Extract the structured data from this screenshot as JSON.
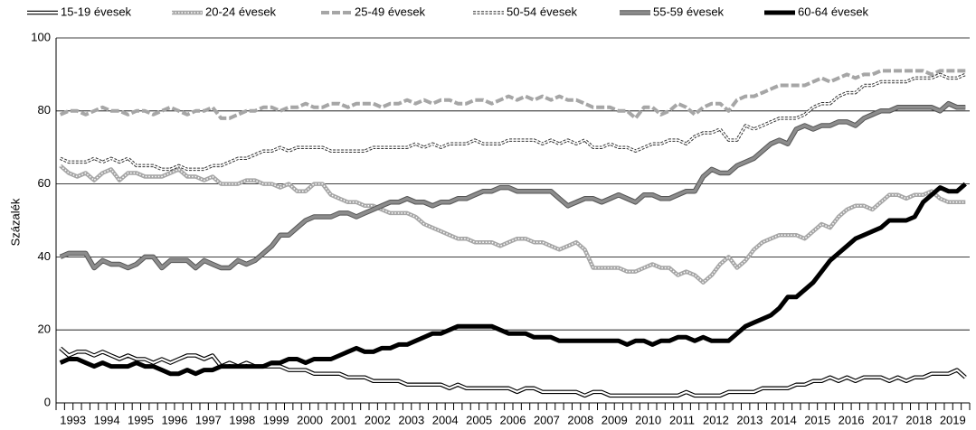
{
  "chart_data": {
    "type": "line",
    "ylabel": "Százalék",
    "categories": [
      "1993",
      null,
      null,
      null,
      "1994",
      null,
      null,
      null,
      "1995",
      null,
      null,
      null,
      "1996",
      null,
      null,
      null,
      "1997",
      null,
      null,
      null,
      "1998",
      null,
      null,
      null,
      "1999",
      null,
      null,
      null,
      "2000",
      null,
      null,
      null,
      "2001",
      null,
      null,
      null,
      "2002",
      null,
      null,
      null,
      "2003",
      null,
      null,
      null,
      "2004",
      null,
      null,
      null,
      "2005",
      null,
      null,
      null,
      "2006",
      null,
      null,
      null,
      "2007",
      null,
      null,
      null,
      "2008",
      null,
      null,
      null,
      "2009",
      null,
      null,
      null,
      "2010",
      null,
      null,
      null,
      "2011",
      null,
      null,
      null,
      "2012",
      null,
      null,
      null,
      "2013",
      null,
      null,
      null,
      "2014",
      null,
      null,
      null,
      "2015",
      null,
      null,
      null,
      "2016",
      null,
      null,
      null,
      "2017",
      null,
      null,
      null,
      "2018",
      null,
      null,
      null,
      "2019",
      null,
      null,
      null
    ],
    "ylim": [
      0,
      100
    ],
    "yticks": [
      0,
      20,
      40,
      60,
      80,
      100
    ],
    "grid": true,
    "legend": "top",
    "series": [
      {
        "name": "15-19 évesek",
        "color": "#ffffff",
        "line_style": "outline",
        "values": [
          15,
          13,
          14,
          14,
          13,
          14,
          13,
          12,
          13,
          12,
          12,
          11,
          12,
          11,
          12,
          13,
          13,
          12,
          13,
          10,
          11,
          10,
          11,
          10,
          10,
          10,
          10,
          9,
          9,
          9,
          8,
          8,
          8,
          8,
          7,
          7,
          7,
          6,
          6,
          6,
          6,
          5,
          5,
          5,
          5,
          5,
          4,
          5,
          4,
          4,
          4,
          4,
          4,
          4,
          3,
          4,
          4,
          3,
          3,
          3,
          3,
          3,
          2,
          3,
          3,
          2,
          2,
          2,
          2,
          2,
          2,
          2,
          2,
          2,
          3,
          2,
          2,
          2,
          2,
          3,
          3,
          3,
          3,
          4,
          4,
          4,
          4,
          5,
          5,
          6,
          6,
          7,
          6,
          7,
          6,
          7,
          7,
          7,
          6,
          7,
          6,
          7,
          7,
          8,
          8,
          8,
          9,
          7
        ]
      },
      {
        "name": "20-24 évesek",
        "color": "#a6a6a6",
        "line_style": "dotted",
        "values": [
          65,
          63,
          62,
          63,
          61,
          63,
          64,
          61,
          63,
          63,
          62,
          62,
          62,
          63,
          64,
          62,
          62,
          61,
          62,
          60,
          60,
          60,
          61,
          61,
          60,
          60,
          59,
          60,
          58,
          58,
          60,
          60,
          57,
          56,
          55,
          55,
          54,
          54,
          53,
          52,
          52,
          52,
          51,
          49,
          48,
          47,
          46,
          45,
          45,
          44,
          44,
          44,
          43,
          44,
          45,
          45,
          44,
          44,
          43,
          42,
          43,
          44,
          42,
          37,
          37,
          37,
          37,
          36,
          36,
          37,
          38,
          37,
          37,
          35,
          36,
          35,
          33,
          35,
          38,
          40,
          37,
          39,
          42,
          44,
          45,
          46,
          46,
          46,
          45,
          47,
          49,
          48,
          51,
          53,
          54,
          54,
          53,
          55,
          57,
          57,
          56,
          57,
          57,
          58,
          56,
          55,
          55,
          55
        ]
      },
      {
        "name": "25-49 évesek",
        "color": "#a6a6a6",
        "line_style": "dashed",
        "values": [
          79,
          80,
          80,
          79,
          80,
          81,
          80,
          80,
          79,
          80,
          80,
          79,
          80,
          81,
          80,
          79,
          80,
          80,
          81,
          78,
          78,
          79,
          80,
          80,
          81,
          81,
          80,
          81,
          81,
          82,
          81,
          81,
          82,
          82,
          81,
          82,
          82,
          82,
          81,
          82,
          82,
          83,
          82,
          83,
          82,
          83,
          83,
          82,
          82,
          83,
          83,
          82,
          83,
          84,
          83,
          84,
          83,
          84,
          83,
          84,
          83,
          83,
          82,
          81,
          81,
          81,
          80,
          80,
          78,
          81,
          81,
          79,
          80,
          82,
          81,
          79,
          81,
          82,
          82,
          80,
          83,
          84,
          84,
          85,
          86,
          87,
          87,
          87,
          87,
          88,
          89,
          88,
          89,
          90,
          89,
          90,
          90,
          91,
          91,
          91,
          91,
          91,
          91,
          90,
          91,
          91,
          91,
          91
        ]
      },
      {
        "name": "50-54 évesek",
        "color": "#ffffff",
        "line_style": "thin-outline",
        "values": [
          67,
          66,
          66,
          66,
          67,
          66,
          67,
          66,
          67,
          65,
          65,
          65,
          64,
          64,
          65,
          64,
          64,
          64,
          65,
          65,
          66,
          67,
          67,
          68,
          69,
          69,
          70,
          69,
          70,
          70,
          70,
          70,
          69,
          69,
          69,
          69,
          69,
          70,
          70,
          70,
          70,
          70,
          71,
          70,
          71,
          70,
          71,
          71,
          71,
          72,
          71,
          71,
          71,
          72,
          72,
          72,
          72,
          71,
          72,
          71,
          72,
          71,
          72,
          70,
          70,
          71,
          70,
          70,
          69,
          70,
          71,
          71,
          72,
          72,
          71,
          73,
          74,
          74,
          75,
          72,
          72,
          76,
          75,
          76,
          77,
          78,
          78,
          78,
          79,
          81,
          82,
          82,
          84,
          85,
          85,
          87,
          87,
          88,
          88,
          88,
          88,
          89,
          89,
          89,
          90,
          89,
          89,
          90
        ]
      },
      {
        "name": "55-59 évesek",
        "color": "#8c8c8c",
        "line_style": "edged",
        "values": [
          40,
          41,
          41,
          41,
          37,
          39,
          38,
          38,
          37,
          38,
          40,
          40,
          37,
          39,
          39,
          39,
          37,
          39,
          38,
          37,
          37,
          39,
          38,
          39,
          41,
          43,
          46,
          46,
          48,
          50,
          51,
          51,
          51,
          52,
          52,
          51,
          52,
          53,
          54,
          55,
          55,
          56,
          55,
          55,
          54,
          55,
          55,
          56,
          56,
          57,
          58,
          58,
          59,
          59,
          58,
          58,
          58,
          58,
          58,
          56,
          54,
          55,
          56,
          56,
          55,
          56,
          57,
          56,
          55,
          57,
          57,
          56,
          56,
          57,
          58,
          58,
          62,
          64,
          63,
          63,
          65,
          66,
          67,
          69,
          71,
          72,
          71,
          75,
          76,
          75,
          76,
          76,
          77,
          77,
          76,
          78,
          79,
          80,
          80,
          81,
          81,
          81,
          81,
          81,
          80,
          82,
          81,
          81
        ]
      },
      {
        "name": "60-64 évesek",
        "color": "#000000",
        "line_style": "solid",
        "values": [
          11,
          12,
          12,
          11,
          10,
          11,
          10,
          10,
          10,
          11,
          10,
          10,
          9,
          8,
          8,
          9,
          8,
          9,
          9,
          10,
          10,
          10,
          10,
          10,
          10,
          11,
          11,
          12,
          12,
          11,
          12,
          12,
          12,
          13,
          14,
          15,
          14,
          14,
          15,
          15,
          16,
          16,
          17,
          18,
          19,
          19,
          20,
          21,
          21,
          21,
          21,
          21,
          20,
          19,
          19,
          19,
          18,
          18,
          18,
          17,
          17,
          17,
          17,
          17,
          17,
          17,
          17,
          16,
          17,
          17,
          16,
          17,
          17,
          18,
          18,
          17,
          18,
          17,
          17,
          17,
          19,
          21,
          22,
          23,
          24,
          26,
          29,
          29,
          31,
          33,
          36,
          39,
          41,
          43,
          45,
          46,
          47,
          48,
          50,
          50,
          50,
          51,
          55,
          57,
          59,
          58,
          58,
          60
        ]
      }
    ]
  }
}
